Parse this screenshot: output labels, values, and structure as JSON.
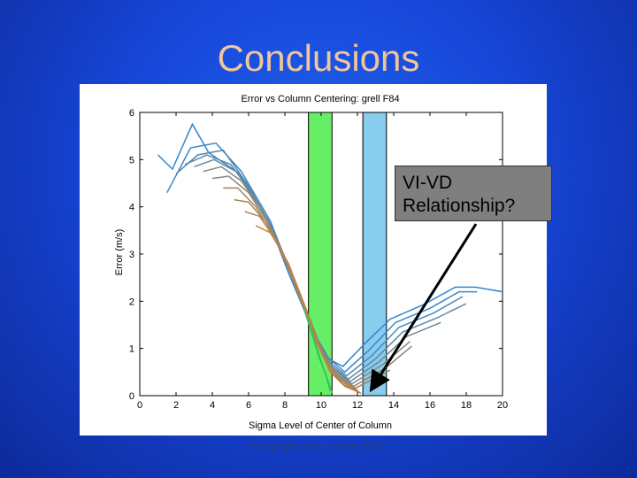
{
  "slide": {
    "title": "Conclusions",
    "callout_line1": "VI-VD",
    "callout_line2": "Relationship?",
    "footer": "Copyright Brett Hoover 2007"
  },
  "colors": {
    "background": "#1746d8",
    "title": "#f2c49a",
    "green_band": "#66ee66",
    "cyan_band": "#88ccee",
    "callout_bg": "#7f7f7f"
  },
  "chart_data": {
    "type": "line",
    "title": "Error vs Column Centering: grell F84",
    "xlabel": "Sigma Level of Center of Column",
    "ylabel": "Error (m/s)",
    "xlim": [
      0,
      20
    ],
    "ylim": [
      0,
      6
    ],
    "xticks": [
      0,
      2,
      4,
      6,
      8,
      10,
      12,
      14,
      16,
      18,
      20
    ],
    "yticks": [
      0,
      1,
      2,
      3,
      4,
      5,
      6
    ],
    "grid": false,
    "highlight_bands": [
      {
        "x0": 9.3,
        "x1": 10.6,
        "color": "green"
      },
      {
        "x0": 12.3,
        "x1": 13.6,
        "color": "cyan"
      }
    ],
    "series": [
      {
        "points": [
          [
            1,
            5.1
          ],
          [
            1.8,
            4.8
          ],
          [
            2.9,
            5.75
          ],
          [
            3.8,
            5.15
          ],
          [
            5.5,
            4.7
          ],
          [
            7.1,
            3.7
          ],
          [
            8.2,
            2.6
          ],
          [
            9.3,
            1.6
          ],
          [
            10.3,
            0.8
          ],
          [
            11.2,
            0.62
          ],
          [
            12.4,
            1.1
          ],
          [
            13.8,
            1.62
          ],
          [
            15.6,
            1.92
          ],
          [
            17.4,
            2.3
          ],
          [
            18.5,
            2.3
          ],
          [
            20,
            2.2
          ]
        ],
        "color": "#2f86d0"
      },
      {
        "points": [
          [
            1.5,
            4.3
          ],
          [
            2.8,
            5.25
          ],
          [
            4.2,
            5.35
          ],
          [
            5.6,
            4.75
          ],
          [
            7.2,
            3.7
          ],
          [
            8.4,
            2.5
          ],
          [
            9.5,
            1.4
          ],
          [
            10.4,
            0.8
          ],
          [
            11.3,
            0.5
          ],
          [
            12.6,
            0.95
          ],
          [
            14.1,
            1.55
          ],
          [
            16.0,
            1.85
          ],
          [
            17.6,
            2.2
          ],
          [
            18.6,
            2.2
          ]
        ],
        "color": "#3b87c6"
      },
      {
        "points": [
          [
            2.0,
            4.7
          ],
          [
            3.2,
            5.1
          ],
          [
            4.6,
            5.2
          ],
          [
            5.9,
            4.5
          ],
          [
            7.4,
            3.5
          ],
          [
            8.6,
            2.3
          ],
          [
            9.6,
            1.3
          ],
          [
            10.5,
            0.7
          ],
          [
            11.4,
            0.42
          ],
          [
            12.8,
            0.85
          ],
          [
            14.3,
            1.45
          ],
          [
            16.2,
            1.75
          ],
          [
            17.8,
            2.1
          ]
        ],
        "color": "#4c88b8"
      },
      {
        "points": [
          [
            2.5,
            4.9
          ],
          [
            3.7,
            5.1
          ],
          [
            5.0,
            4.9
          ],
          [
            6.2,
            4.3
          ],
          [
            7.6,
            3.3
          ],
          [
            8.8,
            2.2
          ],
          [
            9.8,
            1.2
          ],
          [
            10.6,
            0.62
          ],
          [
            11.5,
            0.35
          ],
          [
            13.0,
            0.78
          ],
          [
            14.5,
            1.35
          ],
          [
            16.4,
            1.65
          ],
          [
            18.0,
            1.95
          ]
        ],
        "color": "#5c88a8"
      },
      {
        "points": [
          [
            3.0,
            4.85
          ],
          [
            4.1,
            5.0
          ],
          [
            5.3,
            4.75
          ],
          [
            6.5,
            4.1
          ],
          [
            7.8,
            3.1
          ],
          [
            9.0,
            2.0
          ],
          [
            9.9,
            1.1
          ],
          [
            10.7,
            0.55
          ],
          [
            11.6,
            0.3
          ],
          [
            13.2,
            0.72
          ],
          [
            14.7,
            1.25
          ],
          [
            16.6,
            1.55
          ]
        ],
        "color": "#6c8898"
      },
      {
        "points": [
          [
            3.5,
            4.75
          ],
          [
            4.5,
            4.85
          ],
          [
            5.6,
            4.55
          ],
          [
            6.8,
            3.9
          ],
          [
            8.0,
            2.9
          ],
          [
            9.1,
            1.85
          ],
          [
            10.0,
            1.0
          ],
          [
            10.8,
            0.48
          ],
          [
            11.7,
            0.25
          ],
          [
            13.4,
            0.66
          ],
          [
            14.9,
            1.15
          ]
        ],
        "color": "#7c8a8a"
      },
      {
        "points": [
          [
            4.0,
            4.6
          ],
          [
            4.9,
            4.65
          ],
          [
            6.0,
            4.3
          ],
          [
            7.1,
            3.65
          ],
          [
            8.2,
            2.7
          ],
          [
            9.3,
            1.7
          ],
          [
            10.1,
            0.9
          ],
          [
            10.9,
            0.42
          ],
          [
            11.8,
            0.2
          ],
          [
            13.6,
            0.6
          ],
          [
            15.0,
            1.05
          ]
        ],
        "color": "#8c8878"
      },
      {
        "points": [
          [
            4.6,
            4.4
          ],
          [
            5.4,
            4.4
          ],
          [
            6.4,
            4.0
          ],
          [
            7.4,
            3.4
          ],
          [
            8.4,
            2.5
          ],
          [
            9.4,
            1.55
          ],
          [
            10.2,
            0.8
          ],
          [
            11.0,
            0.36
          ],
          [
            11.9,
            0.16
          ],
          [
            13.8,
            0.54
          ]
        ],
        "color": "#9c8666"
      },
      {
        "points": [
          [
            5.2,
            4.15
          ],
          [
            6.0,
            4.1
          ],
          [
            6.9,
            3.7
          ],
          [
            7.8,
            3.1
          ],
          [
            8.6,
            2.3
          ],
          [
            9.5,
            1.4
          ],
          [
            10.3,
            0.7
          ],
          [
            11.1,
            0.3
          ],
          [
            12.0,
            0.12
          ]
        ],
        "color": "#ac8458"
      },
      {
        "points": [
          [
            5.8,
            3.9
          ],
          [
            6.6,
            3.8
          ],
          [
            7.4,
            3.35
          ],
          [
            8.2,
            2.8
          ],
          [
            8.9,
            2.1
          ],
          [
            9.6,
            1.25
          ],
          [
            10.4,
            0.6
          ],
          [
            11.2,
            0.24
          ],
          [
            12.1,
            0.08
          ]
        ],
        "color": "#b8824c"
      },
      {
        "points": [
          [
            6.4,
            3.6
          ],
          [
            7.2,
            3.45
          ],
          [
            7.9,
            3.0
          ],
          [
            8.6,
            2.4
          ],
          [
            9.2,
            1.8
          ],
          [
            9.8,
            1.1
          ],
          [
            10.5,
            0.5
          ],
          [
            11.3,
            0.2
          ],
          [
            12.2,
            0.05
          ]
        ],
        "color": "#c48040"
      },
      {
        "points": [
          [
            9.2,
            1.7
          ],
          [
            9.7,
            1.1
          ],
          [
            10.1,
            0.6
          ],
          [
            10.4,
            0.3
          ],
          [
            10.6,
            0.06
          ]
        ],
        "color": "#44cc44"
      },
      {
        "points": [
          [
            9.0,
            1.9
          ],
          [
            9.5,
            1.3
          ],
          [
            9.9,
            0.8
          ],
          [
            10.3,
            0.4
          ],
          [
            10.5,
            0.1
          ]
        ],
        "color": "#33bb66"
      }
    ]
  }
}
